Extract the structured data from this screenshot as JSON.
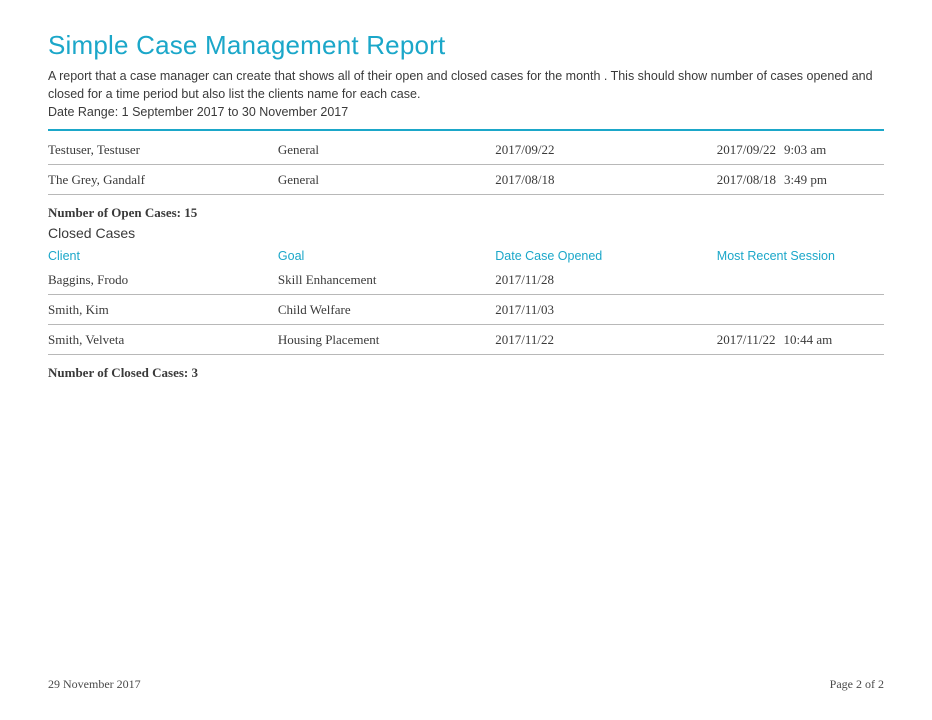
{
  "colors": {
    "accent": "#1ba7c9",
    "text": "#3a3a3a",
    "rule": "#b8b8b8",
    "top_rule": "#1ba7c9"
  },
  "report": {
    "title": "Simple Case Management Report",
    "description": "A report that a case manager can create that shows all of their open and closed cases for the month . This should show number of cases opened and closed for a time period but also list the clients name for each case.",
    "date_range": "Date Range: 1 September 2017 to 30 November 2017"
  },
  "open_tail": {
    "rows": [
      {
        "client": "Testuser, Testuser",
        "goal": "General",
        "opened": "2017/09/22",
        "session_date": "2017/09/22",
        "session_time": "9:03 am"
      },
      {
        "client": "The Grey, Gandalf",
        "goal": "General",
        "opened": "2017/08/18",
        "session_date": "2017/08/18",
        "session_time": "3:49 pm"
      }
    ],
    "summary": "Number of Open Cases: 15"
  },
  "closed": {
    "section_label": "Closed Cases",
    "headers": {
      "client": "Client",
      "goal": "Goal",
      "opened": "Date Case Opened",
      "session": "Most Recent Session"
    },
    "rows": [
      {
        "client": "Baggins, Frodo",
        "goal": "Skill Enhancement",
        "opened": "2017/11/28",
        "session_date": "",
        "session_time": ""
      },
      {
        "client": "Smith, Kim",
        "goal": "Child Welfare",
        "opened": "2017/11/03",
        "session_date": "",
        "session_time": ""
      },
      {
        "client": "Smith, Velveta",
        "goal": "Housing Placement",
        "opened": "2017/11/22",
        "session_date": "2017/11/22",
        "session_time": "10:44 am"
      }
    ],
    "summary": "Number of Closed Cases: 3"
  },
  "footer": {
    "date": "29 November 2017",
    "page": "Page 2 of 2"
  }
}
